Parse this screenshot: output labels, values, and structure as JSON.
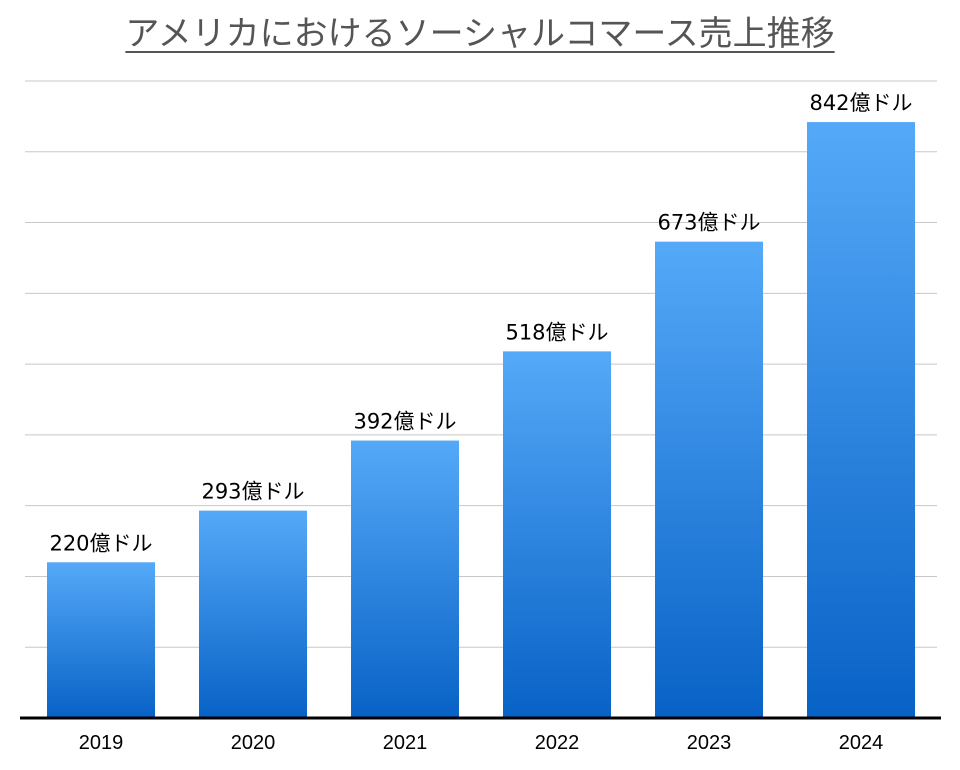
{
  "chart_data": {
    "type": "bar",
    "title": "アメリカにおけるソーシャルコマース売上推移",
    "categories": [
      "2019",
      "2020",
      "2021",
      "2022",
      "2023",
      "2024"
    ],
    "values": [
      220,
      293,
      392,
      518,
      673,
      842
    ],
    "data_labels": [
      "220億ドル",
      "293億ドル",
      "392億ドル",
      "518億ドル",
      "673億ドル",
      "842億ドル"
    ],
    "unit": "億ドル",
    "xlabel": "",
    "ylabel": "",
    "ylim": [
      0,
      900
    ],
    "grid_step": 100,
    "grid": true,
    "bar_color_top": "#55a9f8",
    "bar_color_bottom": "#0862c6"
  }
}
